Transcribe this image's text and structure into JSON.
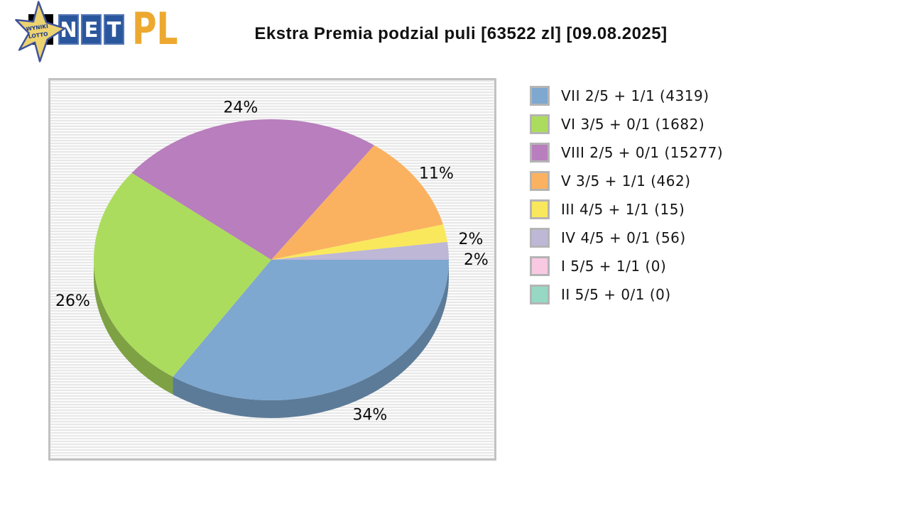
{
  "logo": {
    "star_text_line1": "WYNIKI",
    "star_text_line2": "LOTTO",
    "net_letters": [
      "N",
      "E",
      "T"
    ],
    "pl_text": "PL",
    "colors": {
      "star_fill": "#EDD36F",
      "star_stroke": "#3F539A",
      "star_text": "#1E3C8C",
      "net_box": "#2A569D",
      "net_letter": "#FFFFFF",
      "pl": "#EDA92F",
      "black_block": "#000000"
    }
  },
  "title": "Ekstra Premia podzial puli [63522 zl] [09.08.2025]",
  "chart_data": {
    "type": "pie",
    "style": "3d",
    "title": "Ekstra Premia podzial puli [63522 zl] [09.08.2025]",
    "legend_position": "right",
    "slices": [
      {
        "label": "VII 2/5 + 1/1 (4319)",
        "percent": 34,
        "percent_label": "34%",
        "color": "#7EA8D0"
      },
      {
        "label": "VI 3/5 + 0/1 (1682)",
        "percent": 26,
        "percent_label": "26%",
        "color": "#ACDC5D"
      },
      {
        "label": "VIII 2/5 + 0/1 (15277)",
        "percent": 24,
        "percent_label": "24%",
        "color": "#B87EBD"
      },
      {
        "label": "V 3/5 + 1/1 (462)",
        "percent": 11,
        "percent_label": "11%",
        "color": "#FAB260"
      },
      {
        "label": "III 4/5 + 1/1 (15)",
        "percent": 2,
        "percent_label": "2%",
        "color": "#FAE85C"
      },
      {
        "label": "IV 4/5 + 0/1 (56)",
        "percent": 2,
        "percent_label": "2%",
        "color": "#BEB7D6"
      },
      {
        "label": "I 5/5 + 1/1 (0)",
        "percent": 0,
        "percent_label": "",
        "color": "#F9C9E2"
      },
      {
        "label": "II 5/5 + 0/1 (0)",
        "percent": 0,
        "percent_label": "",
        "color": "#96D8C4"
      }
    ]
  }
}
